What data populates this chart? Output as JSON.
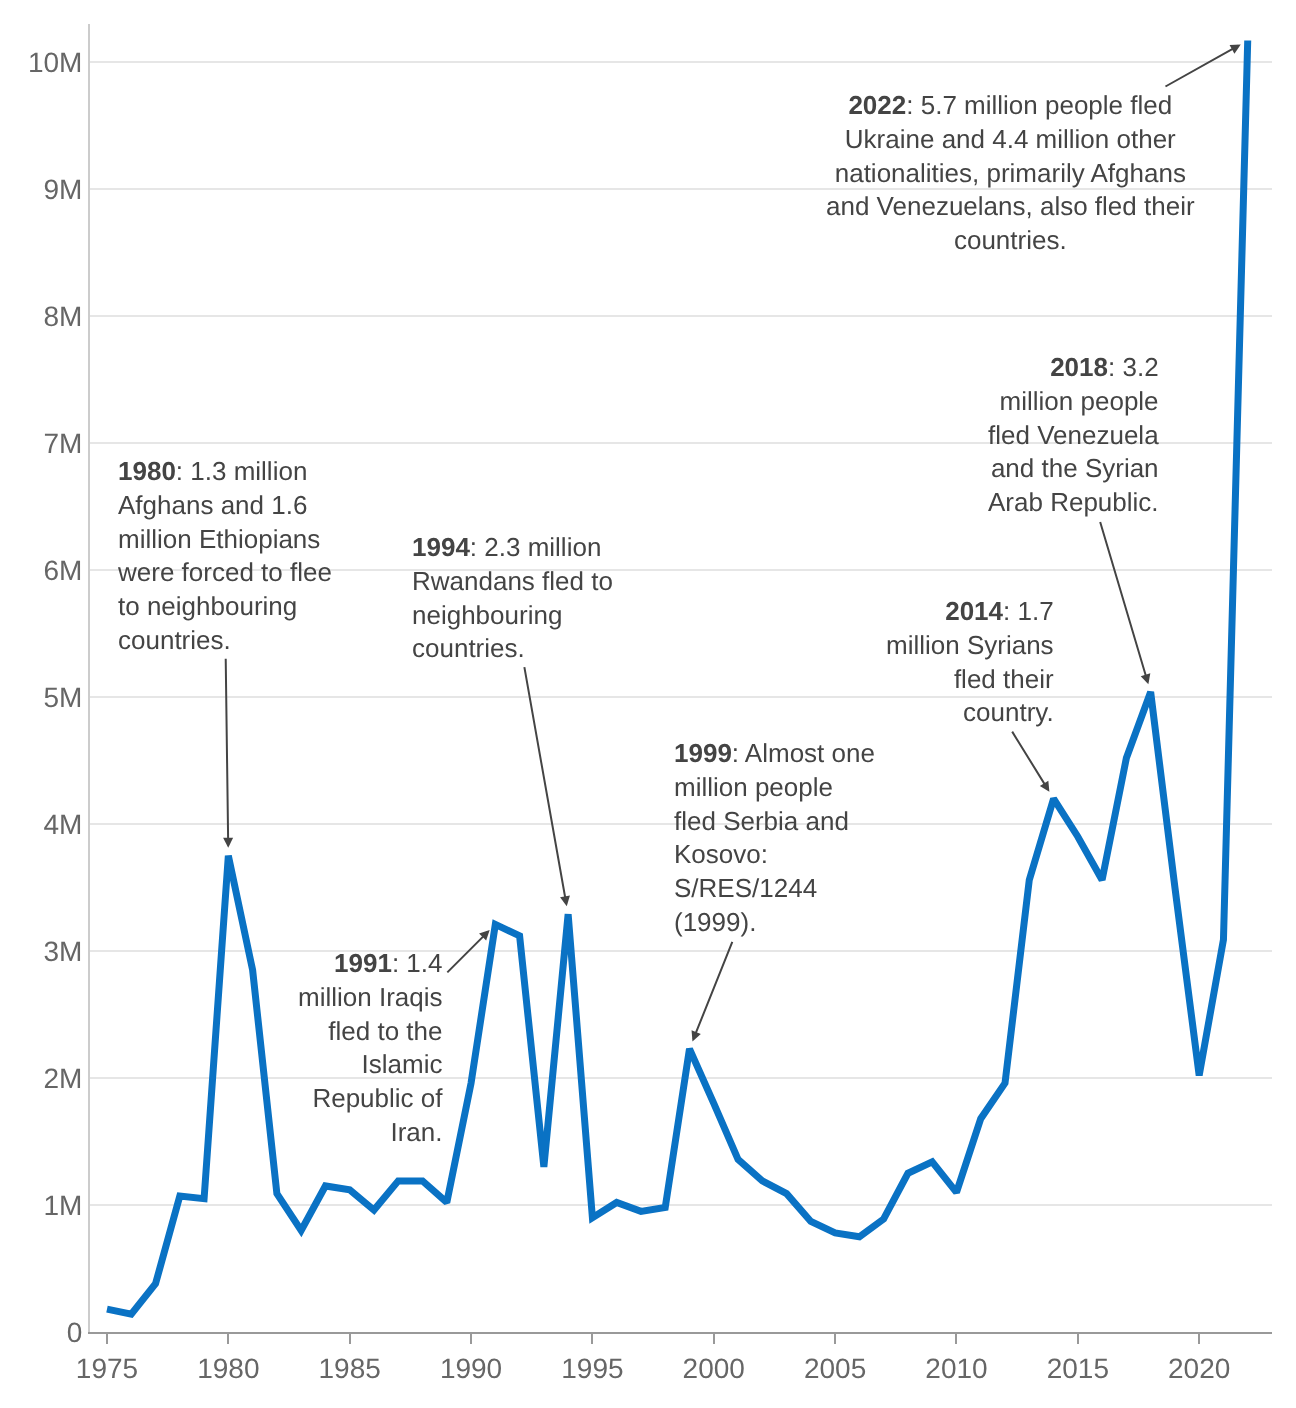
{
  "chart_data": {
    "type": "line",
    "x": [
      1975,
      1976,
      1977,
      1978,
      1979,
      1980,
      1981,
      1982,
      1983,
      1984,
      1985,
      1986,
      1987,
      1988,
      1989,
      1990,
      1991,
      1992,
      1993,
      1994,
      1995,
      1996,
      1997,
      1998,
      1999,
      2000,
      2001,
      2002,
      2003,
      2004,
      2005,
      2006,
      2007,
      2008,
      2009,
      2010,
      2011,
      2012,
      2013,
      2014,
      2015,
      2016,
      2017,
      2018,
      2019,
      2020,
      2021,
      2022
    ],
    "series": [
      {
        "color": "#0a72c4",
        "values": [
          0.18,
          0.14,
          0.38,
          1.07,
          1.05,
          3.75,
          2.85,
          1.09,
          0.8,
          1.15,
          1.12,
          0.96,
          1.19,
          1.19,
          1.02,
          1.96,
          3.21,
          3.12,
          1.3,
          3.29,
          0.9,
          1.02,
          0.95,
          0.98,
          2.23,
          1.8,
          1.36,
          1.19,
          1.09,
          0.87,
          0.78,
          0.75,
          0.89,
          1.25,
          1.34,
          1.1,
          1.68,
          1.96,
          3.56,
          4.2,
          3.9,
          3.56,
          4.52,
          5.04,
          3.5,
          2.02,
          3.09,
          10.17
        ]
      }
    ],
    "xlim": [
      1974.3,
      2023
    ],
    "xticks": [
      1975,
      1980,
      1985,
      1990,
      1995,
      2000,
      2005,
      2010,
      2015,
      2020
    ],
    "ylim": [
      0,
      10.3
    ],
    "yticks": [
      0,
      {
        "value": 1,
        "label": "1M"
      },
      {
        "value": 2,
        "label": "2M"
      },
      {
        "value": 3,
        "label": "3M"
      },
      {
        "value": 4,
        "label": "4M"
      },
      {
        "value": 5,
        "label": "5M"
      },
      {
        "value": 6,
        "label": "6M"
      },
      {
        "value": 7,
        "label": "7M"
      },
      {
        "value": 8,
        "label": "8M"
      },
      {
        "value": 9,
        "label": "9M"
      },
      {
        "value": 10,
        "label": "10M"
      }
    ],
    "grid": "y",
    "marker": "none",
    "line_style": "solid",
    "annotations": [
      {
        "text": "1980: 1.3 million Afghans and 1.6 million Ethiopians were forced to flee to neighbouring countries.",
        "x": 1980,
        "y": 3.75
      },
      {
        "text": "1991: 1.4 million Iraqis fled to the Islamic Republic of Iran.",
        "x": 1991,
        "y": 3.21
      },
      {
        "text": "1994: 2.3 million Rwandans fled to neighbouring countries.",
        "x": 1994,
        "y": 3.29
      },
      {
        "text": "1999: Almost one million people fled Serbia and Kosovo: S/RES/1244 (1999).",
        "x": 1999,
        "y": 2.23
      },
      {
        "text": "2014: 1.7 million Syrians fled their country.",
        "x": 2014,
        "y": 4.2
      },
      {
        "text": "2018: 3.2 million people fled Venezuela and the Syrian Arab Republic.",
        "x": 2018,
        "y": 5.04
      },
      {
        "text": "2022: 5.7 million people fled Ukraine and 4.4 million other nationalities, primarily Afghans and Venezuelans, also fled their countries.",
        "x": 2022,
        "y": 10.17
      }
    ]
  }
}
